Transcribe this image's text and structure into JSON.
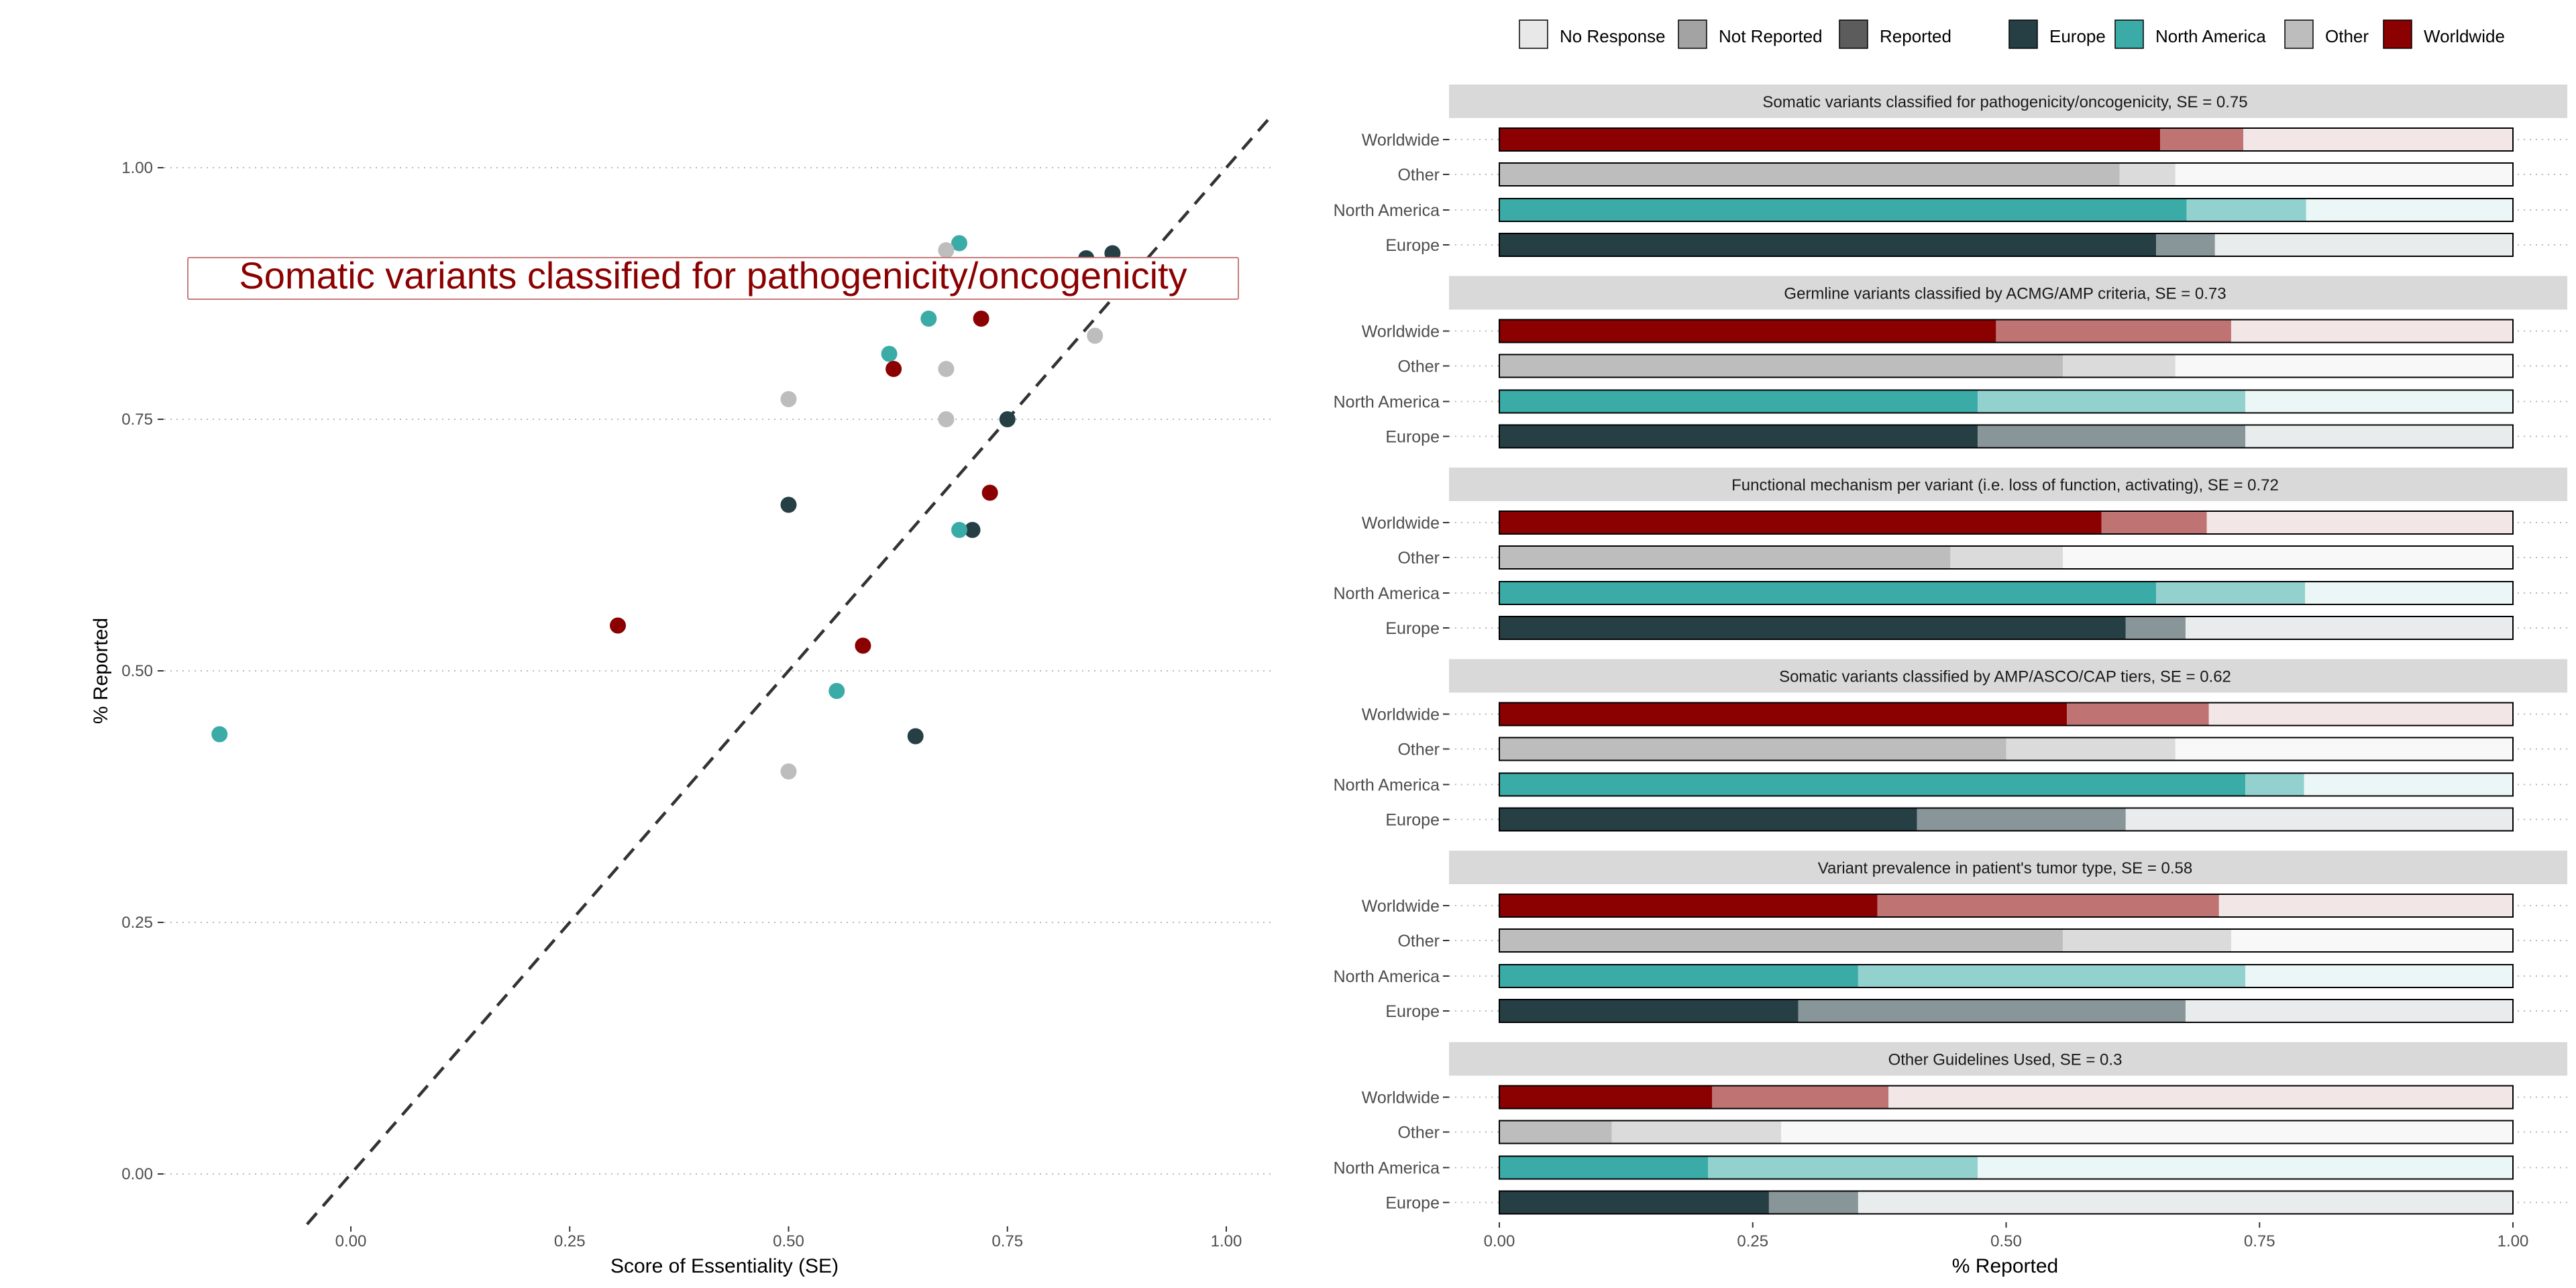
{
  "colors": {
    "Europe": "#263f45",
    "North America": "#3aaba7",
    "Other": "#bdbdbd",
    "Worldwide": "#8b0000",
    "panel_header": "#d9d9d9",
    "grid": "#b8b8b8",
    "text": "#4d4d4d"
  },
  "legend": {
    "response": [
      {
        "label": "No Response",
        "color": "#e8e8e8"
      },
      {
        "label": "Not Reported",
        "color": "#a3a3a3"
      },
      {
        "label": "Reported",
        "color": "#5c5c5c"
      }
    ],
    "region": [
      {
        "label": "Europe",
        "color": "#263f45"
      },
      {
        "label": "North America",
        "color": "#3aaba7"
      },
      {
        "label": "Other",
        "color": "#bdbdbd"
      },
      {
        "label": "Worldwide",
        "color": "#8b0000"
      }
    ]
  },
  "chart_data": [
    {
      "type": "scatter",
      "xlabel": "Score of Essentiality (SE)",
      "ylabel": "% Reported",
      "xlim": [
        -0.2,
        1.05
      ],
      "ylim": [
        -0.05,
        1.05
      ],
      "x_ticks": [
        "0.00",
        "0.25",
        "0.50",
        "0.75",
        "1.00"
      ],
      "y_ticks": [
        "0.00",
        "0.25",
        "0.50",
        "0.75",
        "1.00"
      ],
      "grid": "horizontal dotted",
      "annotation": "Somatic variants classified for pathogenicity/oncogenicity",
      "reference_line": {
        "style": "dashed",
        "from": [
          -0.05,
          -0.05
        ],
        "to": [
          1.05,
          1.05
        ]
      },
      "series": [
        {
          "name": "Europe",
          "points": [
            [
              0.84,
              0.91
            ],
            [
              0.87,
              0.915
            ],
            [
              0.75,
              0.75
            ],
            [
              0.5,
              0.665
            ],
            [
              0.71,
              0.64
            ],
            [
              0.645,
              0.435
            ]
          ]
        },
        {
          "name": "North America",
          "points": [
            [
              0.695,
              0.925
            ],
            [
              0.66,
              0.85
            ],
            [
              0.615,
              0.815
            ],
            [
              0.695,
              0.64
            ],
            [
              0.555,
              0.48
            ],
            [
              -0.15,
              0.437
            ]
          ]
        },
        {
          "name": "Other",
          "points": [
            [
              0.68,
              0.918
            ],
            [
              0.85,
              0.833
            ],
            [
              0.68,
              0.8
            ],
            [
              0.5,
              0.77
            ],
            [
              0.68,
              0.75
            ],
            [
              0.5,
              0.4
            ]
          ]
        },
        {
          "name": "Worldwide",
          "points": [
            [
              0.72,
              0.85
            ],
            [
              0.62,
              0.8
            ],
            [
              0.73,
              0.677
            ],
            [
              0.305,
              0.545
            ],
            [
              0.585,
              0.525
            ]
          ]
        }
      ]
    },
    {
      "type": "bar",
      "orientation": "horizontal stacked",
      "xlabel": "% Reported",
      "xlim": [
        0,
        1
      ],
      "x_ticks": [
        "0.00",
        "0.25",
        "0.50",
        "0.75",
        "1.00"
      ],
      "categories": [
        "Worldwide",
        "Other",
        "North America",
        "Europe"
      ],
      "segments": [
        "Reported",
        "Not Reported",
        "No Response"
      ],
      "panels": [
        {
          "title": "Somatic variants classified for pathogenicity/oncogenicity, SE = 0.75",
          "bars": [
            [
              0.652,
              0.082,
              0.266
            ],
            [
              0.612,
              0.055,
              0.333
            ],
            [
              0.678,
              0.118,
              0.204
            ],
            [
              0.648,
              0.058,
              0.294
            ]
          ]
        },
        {
          "title": "Germline variants classified by ACMG/AMP criteria, SE = 0.73",
          "bars": [
            [
              0.49,
              0.232,
              0.278
            ],
            [
              0.556,
              0.111,
              0.333
            ],
            [
              0.472,
              0.264,
              0.264
            ],
            [
              0.472,
              0.264,
              0.264
            ]
          ]
        },
        {
          "title": "Functional mechanism per variant (i.e. loss of function, activating), SE = 0.72",
          "bars": [
            [
              0.594,
              0.104,
              0.302
            ],
            [
              0.445,
              0.111,
              0.444
            ],
            [
              0.648,
              0.147,
              0.205
            ],
            [
              0.618,
              0.059,
              0.323
            ]
          ]
        },
        {
          "title": "Somatic variants classified by AMP/ASCO/CAP tiers, SE = 0.62",
          "bars": [
            [
              0.56,
              0.14,
              0.3
            ],
            [
              0.5,
              0.167,
              0.333
            ],
            [
              0.736,
              0.058,
              0.206
            ],
            [
              0.412,
              0.206,
              0.382
            ]
          ]
        },
        {
          "title": "Variant prevalence in patient's tumor type, SE = 0.58",
          "bars": [
            [
              0.373,
              0.337,
              0.29
            ],
            [
              0.556,
              0.166,
              0.278
            ],
            [
              0.354,
              0.382,
              0.264
            ],
            [
              0.295,
              0.382,
              0.323
            ]
          ]
        },
        {
          "title": "Other Guidelines Used, SE = 0.3",
          "bars": [
            [
              0.21,
              0.174,
              0.616
            ],
            [
              0.111,
              0.167,
              0.722
            ],
            [
              0.206,
              0.266,
              0.528
            ],
            [
              0.266,
              0.088,
              0.646
            ]
          ]
        }
      ]
    }
  ]
}
